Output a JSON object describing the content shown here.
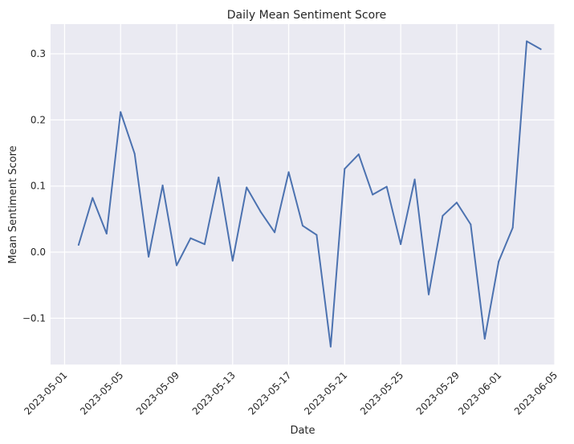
{
  "chart_data": {
    "type": "line",
    "title": "Daily Mean Sentiment Score",
    "xlabel": "Date",
    "ylabel": "Mean Sentiment Score",
    "x_ticks": [
      "2023-05-01",
      "2023-05-05",
      "2023-05-09",
      "2023-05-13",
      "2023-05-17",
      "2023-05-21",
      "2023-05-25",
      "2023-05-29",
      "2023-06-01",
      "2023-06-05"
    ],
    "y_ticks": [
      -0.1,
      0.0,
      0.1,
      0.2,
      0.3
    ],
    "y_tick_labels": [
      "−0.1",
      "0.0",
      "0.1",
      "0.2",
      "0.3"
    ],
    "xlim": [
      "2023-04-30",
      "2023-06-05"
    ],
    "ylim": [
      -0.17,
      0.345
    ],
    "grid": true,
    "background_color": "#eaeaf2",
    "grid_color": "#ffffff",
    "line_color": "#4c72b0",
    "series": [
      {
        "x": [
          "2023-05-02",
          "2023-05-03",
          "2023-05-04",
          "2023-05-05",
          "2023-05-06",
          "2023-05-07",
          "2023-05-08",
          "2023-05-09",
          "2023-05-10",
          "2023-05-11",
          "2023-05-12",
          "2023-05-13",
          "2023-05-14",
          "2023-05-15",
          "2023-05-16",
          "2023-05-17",
          "2023-05-18",
          "2023-05-19",
          "2023-05-20",
          "2023-05-21",
          "2023-05-22",
          "2023-05-23",
          "2023-05-24",
          "2023-05-25",
          "2023-05-26",
          "2023-05-27",
          "2023-05-28",
          "2023-05-29",
          "2023-05-30",
          "2023-05-31",
          "2023-06-01",
          "2023-06-02",
          "2023-06-03",
          "2023-06-04"
        ],
        "values": [
          0.011,
          0.082,
          0.028,
          0.212,
          0.149,
          -0.007,
          0.101,
          -0.02,
          0.021,
          0.012,
          0.113,
          -0.013,
          0.098,
          0.061,
          0.03,
          0.121,
          0.04,
          0.026,
          -0.143,
          0.126,
          0.148,
          0.087,
          0.099,
          0.012,
          0.11,
          -0.064,
          0.055,
          0.075,
          0.042,
          -0.131,
          -0.014,
          0.037,
          0.319,
          0.307
        ]
      }
    ]
  }
}
